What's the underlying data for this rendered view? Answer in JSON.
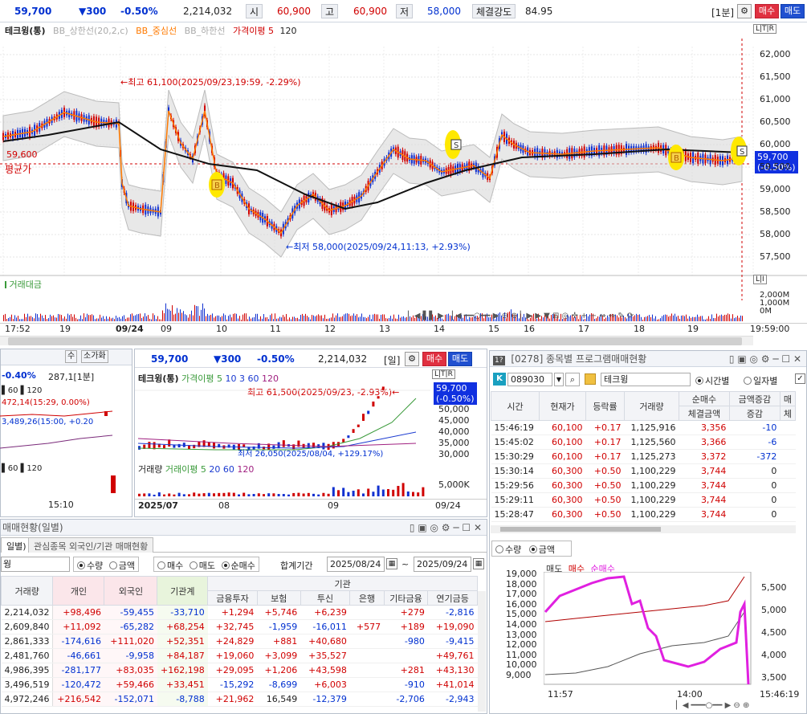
{
  "top": {
    "price": "59,700",
    "change": "▼300",
    "change_pct": "-0.50%",
    "volume": "2,214,032",
    "open_label": "시",
    "open": "60,900",
    "high_label": "고",
    "high": "60,900",
    "low_label": "저",
    "low": "58,000",
    "strength_label": "체결강도",
    "strength": "84.95",
    "period": "[1분]",
    "buy": "매수",
    "sell": "매도"
  },
  "main_chart": {
    "legend": [
      "테크윙(통)",
      "BB_상한선(20,2,c)",
      "BB_중심선",
      "BB_하한선",
      "가격이평 5",
      "120"
    ],
    "high_note": "←최고 61,100(2025/09/23,19:59, -2.29%)",
    "low_note": "←최저 58,000(2025/09/24,11:13, +2.93%)",
    "avg_price": "59,600",
    "avg_label": "평균가",
    "last_tag": "59,700",
    "last_tag_pct": "(-0.50%)",
    "y_ticks": [
      "62,000",
      "61,500",
      "61,000",
      "60,500",
      "60,000",
      "59,500",
      "59,000",
      "58,500",
      "58,000",
      "57,500"
    ],
    "ltr": "L|T|R",
    "vol_label": "거래대금",
    "vol_ticks": [
      "2,000M",
      "1,000M",
      "0M"
    ],
    "x_ticks": [
      "17:52",
      "19",
      "09/24",
      "09",
      "10",
      "11",
      "12",
      "13",
      "14",
      "15",
      "16",
      "17",
      "18",
      "19",
      "19:59:00"
    ],
    "marker_b": "B",
    "marker_s": "S"
  },
  "mid_left": {
    "pct": "-0.40%",
    "val": "287,1[1분]",
    "note": "472,14(15:29, 0.00%)",
    "note2": "3,489,26(15:00, +0.20",
    "legend": [
      "60",
      "120"
    ],
    "legend2": [
      "60",
      "120"
    ],
    "x": "15:10",
    "btn1": "수",
    "btn2": "소가화"
  },
  "mid_center": {
    "price": "59,700",
    "change": "▼300",
    "change_pct": "-0.50%",
    "volume": "2,214,032",
    "period": "[일]",
    "buy": "매수",
    "sell": "매도",
    "legend": [
      "테크윙(통)",
      "가격이평 5",
      "10",
      "3",
      "60",
      "120"
    ],
    "high_note": "최고 61,500(2025/09/23, -2.93%)←",
    "low_note": "최저 26,050(2025/08/04, +129.17%)",
    "tag": "59,700",
    "tag_pct": "(-0.50%)",
    "y_ticks": [
      "50,000",
      "45,000",
      "40,000",
      "35,000",
      "30,000"
    ],
    "vol_legend": [
      "거래량",
      "거래이평 5",
      "20",
      "60",
      "120"
    ],
    "vol_tick": "5,000K",
    "x_ticks": [
      "2025/07",
      "08",
      "09",
      "09/24"
    ]
  },
  "program": {
    "title": "[0278] 종목별 프로그램매매현황",
    "code": "089030",
    "name": "테크윙",
    "radio_time": "시간별",
    "radio_day": "일자별",
    "headers": [
      "시간",
      "현재가",
      "등락률",
      "거래량",
      "순매수",
      "금액증감",
      "매"
    ],
    "sub_headers": [
      "체결금액",
      "증감",
      "체"
    ],
    "rows": [
      [
        "15:46:19",
        "60,100",
        "+0.17",
        "1,125,916",
        "3,356",
        "-10"
      ],
      [
        "15:45:02",
        "60,100",
        "+0.17",
        "1,125,560",
        "3,366",
        "-6"
      ],
      [
        "15:30:29",
        "60,100",
        "+0.17",
        "1,125,273",
        "3,372",
        "-372"
      ],
      [
        "15:30:14",
        "60,300",
        "+0.50",
        "1,100,229",
        "3,744",
        "0"
      ],
      [
        "15:29:56",
        "60,300",
        "+0.50",
        "1,100,229",
        "3,744",
        "0"
      ],
      [
        "15:29:11",
        "60,300",
        "+0.50",
        "1,100,229",
        "3,744",
        "0"
      ],
      [
        "15:28:47",
        "60,300",
        "+0.50",
        "1,100,229",
        "3,744",
        "0"
      ]
    ],
    "radio_qty": "수량",
    "radio_amt": "금액",
    "chart_legend": [
      "매도",
      "매수",
      "순매수"
    ],
    "chart_left_ticks": [
      "19,000",
      "18,000",
      "17,000",
      "16,000",
      "15,000",
      "14,000",
      "13,000",
      "12,000",
      "11,000",
      "10,000",
      "9,000"
    ],
    "chart_right_ticks": [
      "5,500",
      "5,000",
      "4,500",
      "4,000",
      "3,500"
    ],
    "chart_x": [
      "11:57",
      "14:00",
      "15:46:19"
    ]
  },
  "investor": {
    "title": "매매현황(일별)",
    "tab1": "일별)",
    "tab2": "관심종목 외국인/기관 매매현황",
    "code_frag": "웡",
    "radio_qty": "수량",
    "radio_amt": "금액",
    "radio_buy": "매수",
    "radio_sell": "매도",
    "radio_net": "순매수",
    "period_label": "합계기간",
    "date_from": "2025/08/24",
    "date_to": "2025/09/24",
    "group_label": "기관",
    "headers": [
      "거래량",
      "개인",
      "외국인",
      "기관계",
      "금융투자",
      "보험",
      "투신",
      "은행",
      "기타금융",
      "연기금등"
    ],
    "rows": [
      [
        "2,214,032",
        "+98,496",
        "-59,455",
        "-33,710",
        "+1,294",
        "+5,746",
        "+6,239",
        "",
        "+279",
        "-2,816"
      ],
      [
        "2,609,840",
        "+11,092",
        "-65,282",
        "+68,254",
        "+32,745",
        "-1,959",
        "-16,011",
        "+577",
        "+189",
        "+19,090"
      ],
      [
        "2,861,333",
        "-174,616",
        "+111,020",
        "+52,351",
        "+24,829",
        "+881",
        "+40,680",
        "",
        "-980",
        "-9,415"
      ],
      [
        "2,481,760",
        "-46,661",
        "-9,958",
        "+84,187",
        "+19,060",
        "+3,099",
        "+35,527",
        "",
        "",
        "+49,761"
      ],
      [
        "4,986,395",
        "-281,177",
        "+83,035",
        "+162,198",
        "+29,095",
        "+1,206",
        "+43,598",
        "",
        "+281",
        "+43,130"
      ],
      [
        "3,496,519",
        "-120,472",
        "+59,466",
        "+33,451",
        "-15,292",
        "-8,699",
        "+6,003",
        "",
        "-910",
        "+41,014"
      ],
      [
        "4,972,246",
        "+216,542",
        "-152,071",
        "-8,788",
        "+21,962",
        "16,549",
        "-12,379",
        "",
        "-2,706",
        "-2,943"
      ]
    ]
  },
  "colors": {
    "up": "#d00000",
    "down": "#0030d0",
    "ma120": "#111111",
    "ma5": "#ff7a00",
    "bb": "#cfcfcf",
    "net": "#e020e0"
  }
}
